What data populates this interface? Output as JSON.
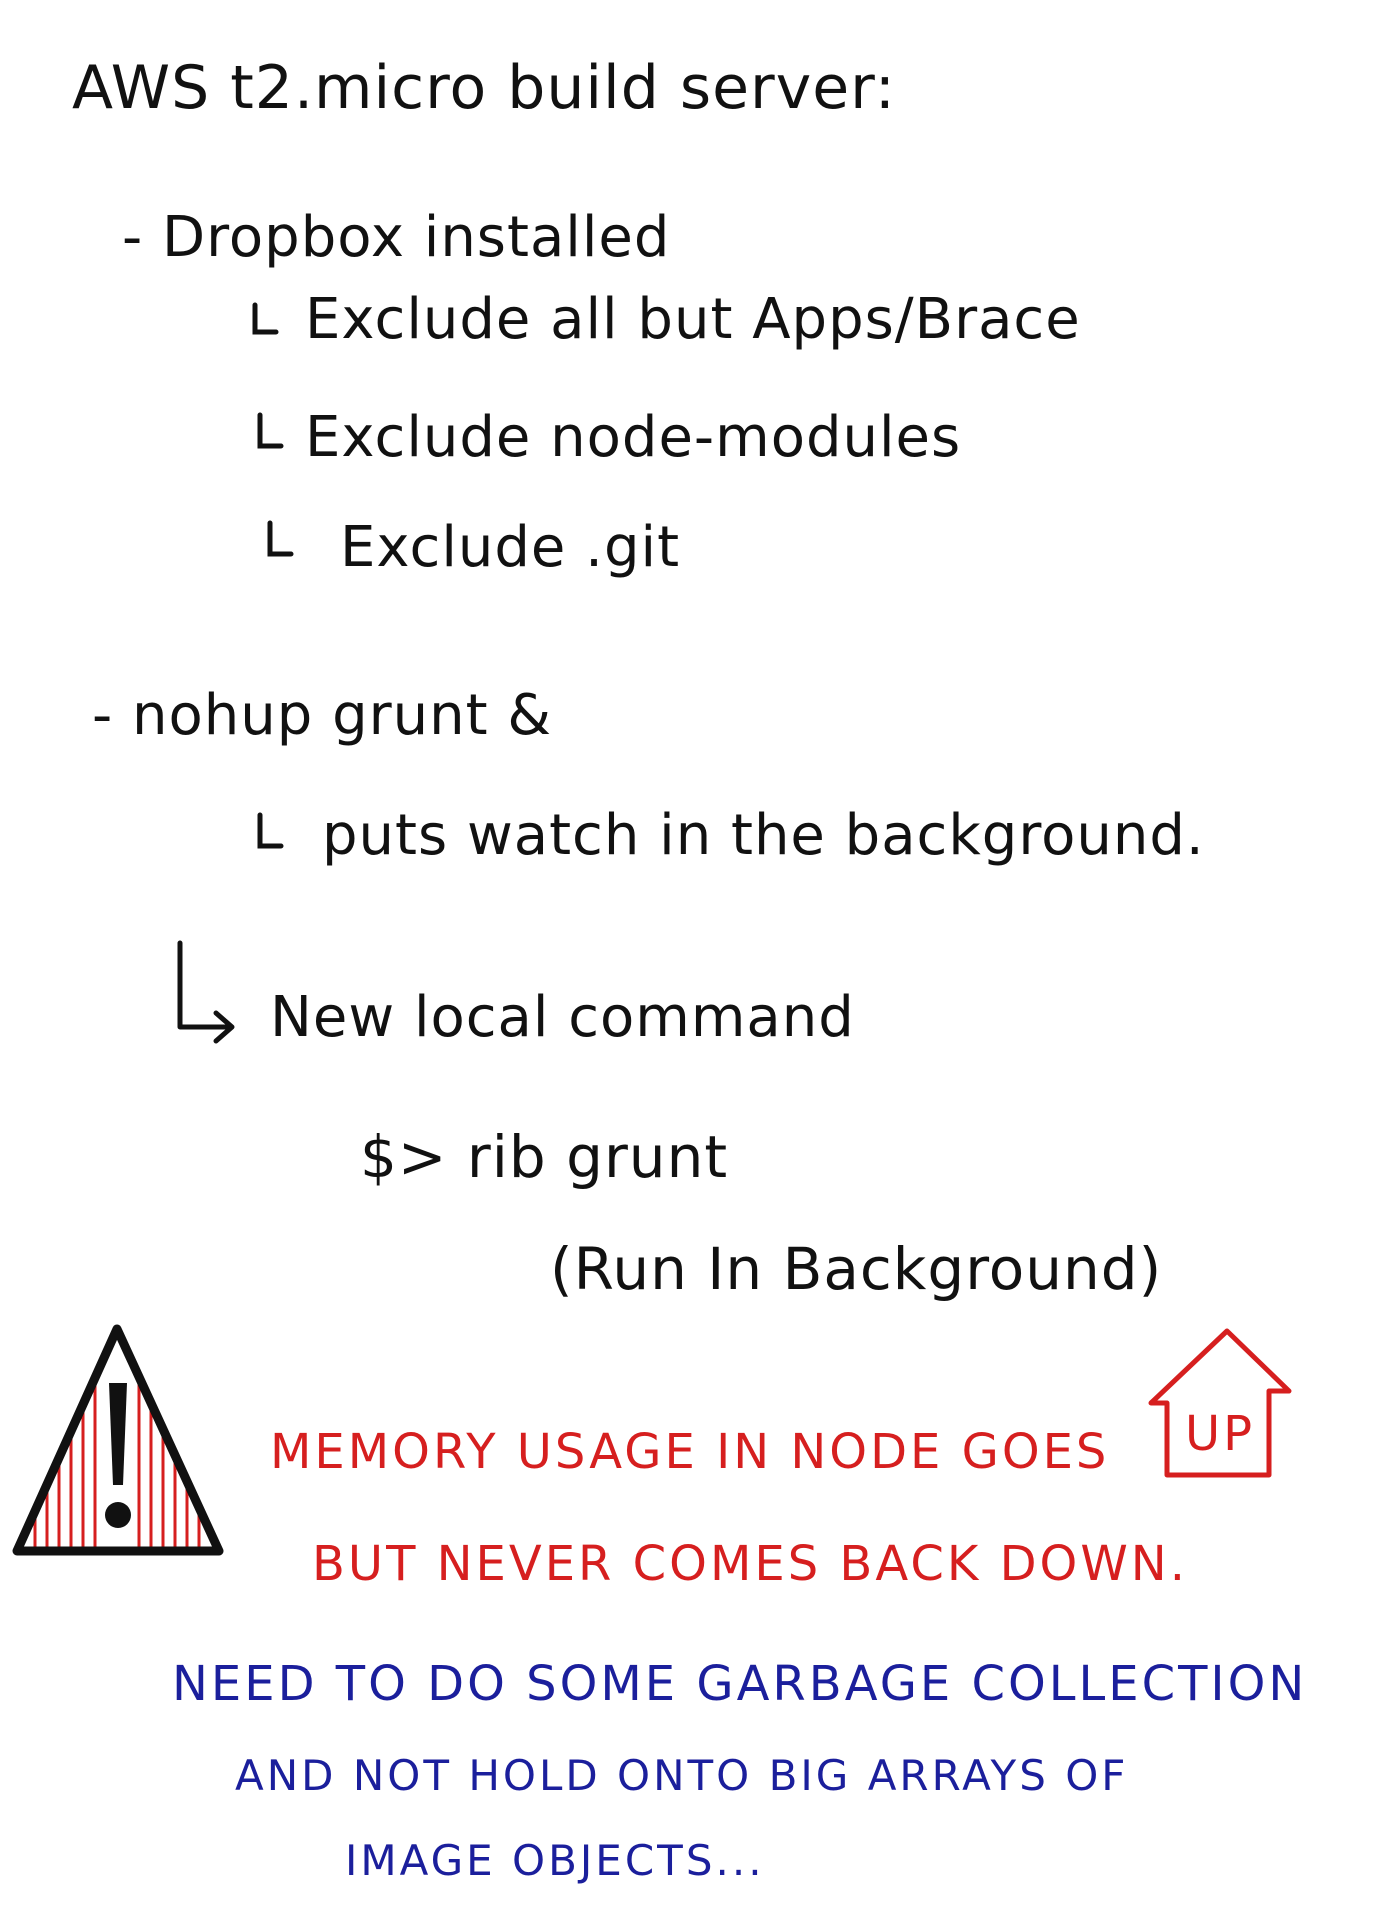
{
  "title": "AWS t2.micro build server:",
  "sections": [
    {
      "bullet": "- Dropbox installed",
      "subitems": [
        "Exclude all but Apps/Brace",
        "Exclude node-modules",
        "Exclude .git"
      ]
    },
    {
      "bullet": "- nohup grunt &",
      "subitems": [
        "puts watch in the background."
      ]
    }
  ],
  "new_command": {
    "label": "New local command",
    "command": "$> rib grunt",
    "explanation": "(Run In Background)"
  },
  "warning": {
    "icon": "warning-triangle-icon",
    "line1": "MEMORY USAGE IN NODE GOES",
    "up_label": "UP",
    "line2": "BUT NEVER COMES BACK DOWN."
  },
  "todo": {
    "line1": "NEED TO DO SOME GARBAGE COLLECTION",
    "line2": "AND NOT HOLD ONTO BIG ARRAYS OF",
    "line3": "IMAGE OBJECTS..."
  },
  "colors": {
    "ink": "#111111",
    "warning": "#d61f1f",
    "note": "#1b1f9c"
  }
}
